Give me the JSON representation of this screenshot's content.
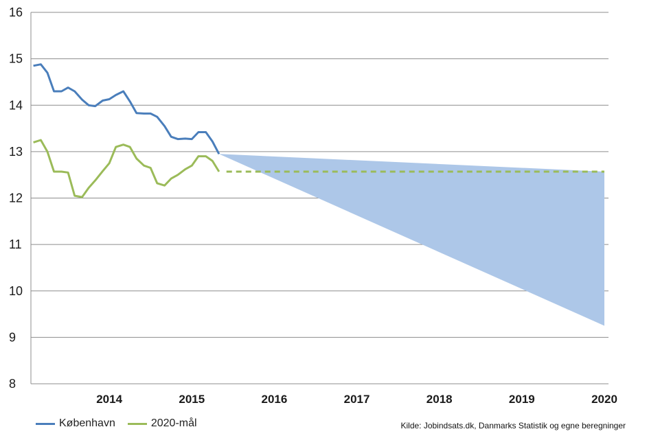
{
  "chart_data": {
    "type": "line",
    "title": "",
    "xlabel": "",
    "ylabel": "",
    "ylim": [
      8,
      16
    ],
    "yticks": [
      "8",
      "9",
      "10",
      "11",
      "12",
      "13",
      "14",
      "15",
      "16"
    ],
    "xticks": [
      "2014",
      "2015",
      "2016",
      "2017",
      "2018",
      "2019",
      "2020"
    ],
    "grid": "horizontal",
    "legend_position": "bottom-left",
    "source": "Kilde: Jobindsats.dk, Danmarks Statistik og egne beregninger",
    "series": [
      {
        "name": "København",
        "color": "#4a7ebb",
        "x": [
          2013.58,
          2013.67,
          2013.75,
          2013.83,
          2013.92,
          2014.0,
          2014.08,
          2014.17,
          2014.25,
          2014.33,
          2014.42,
          2014.5,
          2014.58,
          2014.67,
          2014.75,
          2014.83,
          2014.92,
          2015.0,
          2015.08,
          2015.17,
          2015.25,
          2015.33,
          2015.42,
          2015.5,
          2015.58,
          2015.67,
          2015.75,
          2015.83
        ],
        "values": [
          14.85,
          14.88,
          14.7,
          14.3,
          14.3,
          14.38,
          14.3,
          14.12,
          14.0,
          13.98,
          14.1,
          14.13,
          14.22,
          14.3,
          14.08,
          13.83,
          13.82,
          13.82,
          13.75,
          13.55,
          13.32,
          13.27,
          13.28,
          13.27,
          13.42,
          13.42,
          13.22,
          12.95
        ]
      },
      {
        "name": "2020-mål",
        "color": "#9bbb59",
        "x": [
          2013.58,
          2013.67,
          2013.75,
          2013.83,
          2013.92,
          2014.0,
          2014.08,
          2014.17,
          2014.25,
          2014.33,
          2014.42,
          2014.5,
          2014.58,
          2014.67,
          2014.75,
          2014.83,
          2014.92,
          2015.0,
          2015.08,
          2015.17,
          2015.25,
          2015.33,
          2015.42,
          2015.5,
          2015.58,
          2015.67,
          2015.75,
          2015.83
        ],
        "values": [
          13.2,
          13.25,
          13.0,
          12.57,
          12.57,
          12.55,
          12.05,
          12.02,
          12.22,
          12.38,
          12.58,
          12.75,
          13.1,
          13.15,
          13.1,
          12.85,
          12.7,
          12.65,
          12.32,
          12.27,
          12.42,
          12.5,
          12.62,
          12.7,
          12.9,
          12.9,
          12.8,
          12.57
        ]
      }
    ],
    "target_projection": {
      "color": "#9bbb59",
      "style": "dashed",
      "x": [
        2015.92,
        2020.5
      ],
      "values": [
        12.57,
        12.57
      ]
    },
    "projection_band": {
      "color": "#adc7e8",
      "start_x": 2015.83,
      "start_value": 12.95,
      "end_x": 2020.5,
      "end_upper": 12.57,
      "end_lower": 9.25
    }
  }
}
